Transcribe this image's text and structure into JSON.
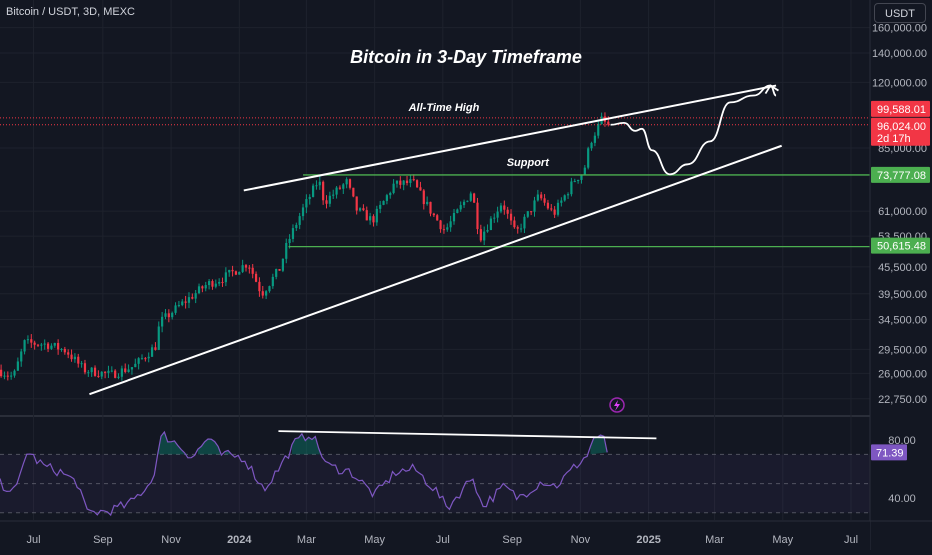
{
  "header": {
    "symbol": "Bitcoin / USDT, 3D, MEXC",
    "currency_button": "USDT"
  },
  "title": "Bitcoin in 3-Day Timeframe",
  "annotations": {
    "ath_label": "All-Time High",
    "support_label": "Support"
  },
  "price_badges": [
    {
      "id": "ath",
      "value": "99,588.01",
      "color": "#f23645"
    },
    {
      "id": "last",
      "value": "96,024.00",
      "sub": "2d 17h",
      "color": "#f23645"
    },
    {
      "id": "support",
      "value": "73,777.08",
      "color": "#4caf50"
    },
    {
      "id": "low",
      "value": "50,615.48",
      "color": "#4caf50"
    }
  ],
  "rsi_badge": {
    "value": "71.39",
    "color": "#7e57c2"
  },
  "colors": {
    "up": "#089981",
    "down": "#f23645",
    "rsi": "#7e57c2",
    "level": "#4caf50",
    "ath_line": "#f23645",
    "background": "#131722",
    "grid": "#1e222d"
  },
  "chart_data": [
    {
      "type": "candlestick",
      "title": "Bitcoin in 3-Day Timeframe",
      "y_scale": "log",
      "ylim": [
        21000,
        185000
      ],
      "y_ticks": [
        "160,000.00",
        "140,000.00",
        "120,000.00",
        "85,000.00",
        "61,000.00",
        "53,500.00",
        "45,500.00",
        "39,500.00",
        "34,500.00",
        "29,500.00",
        "26,000.00",
        "22,750.00"
      ],
      "x_ticks": [
        "Jul",
        "Sep",
        "Nov",
        "2024",
        "Mar",
        "May",
        "Jul",
        "Sep",
        "Nov",
        "2025",
        "Mar",
        "May",
        "Jul"
      ],
      "x_tick_dates": [
        "2023-07-01",
        "2023-09-01",
        "2023-11-01",
        "2024-01-01",
        "2024-03-01",
        "2024-05-01",
        "2024-07-01",
        "2024-09-01",
        "2024-11-01",
        "2025-01-01",
        "2025-03-01",
        "2025-05-01",
        "2025-07-01"
      ],
      "price_path": [
        [
          "2023-06-01",
          26500
        ],
        [
          "2023-06-15",
          25500
        ],
        [
          "2023-06-25",
          30500
        ],
        [
          "2023-07-15",
          30300
        ],
        [
          "2023-08-01",
          29300
        ],
        [
          "2023-08-17",
          26500
        ],
        [
          "2023-09-10",
          25800
        ],
        [
          "2023-10-01",
          27000
        ],
        [
          "2023-10-20",
          30000
        ],
        [
          "2023-10-24",
          34000
        ],
        [
          "2023-11-10",
          37000
        ],
        [
          "2023-12-05",
          41500
        ],
        [
          "2023-12-20",
          43000
        ],
        [
          "2024-01-11",
          46500
        ],
        [
          "2024-01-23",
          39500
        ],
        [
          "2024-02-08",
          45000
        ],
        [
          "2024-02-15",
          51500
        ],
        [
          "2024-02-28",
          61000
        ],
        [
          "2024-03-14",
          72000
        ],
        [
          "2024-03-19",
          64000
        ],
        [
          "2024-04-08",
          71000
        ],
        [
          "2024-04-17",
          61500
        ],
        [
          "2024-05-01",
          58000
        ],
        [
          "2024-05-20",
          70000
        ],
        [
          "2024-06-06",
          71000
        ],
        [
          "2024-06-24",
          60000
        ],
        [
          "2024-07-05",
          55000
        ],
        [
          "2024-07-29",
          68000
        ],
        [
          "2024-08-05",
          53000
        ],
        [
          "2024-08-25",
          64000
        ],
        [
          "2024-09-06",
          54000
        ],
        [
          "2024-09-27",
          66000
        ],
        [
          "2024-10-10",
          60000
        ],
        [
          "2024-10-29",
          72000
        ],
        [
          "2024-11-06",
          75000
        ],
        [
          "2024-11-12",
          88000
        ],
        [
          "2024-11-22",
          98500
        ],
        [
          "2024-11-27",
          96024
        ]
      ],
      "horizontal_levels": [
        {
          "name": "All-Time High",
          "value": 99588.01,
          "style": "dotted"
        },
        {
          "name": "Support",
          "value": 73777.08
        },
        {
          "value": 50615.48
        }
      ],
      "trendlines": [
        {
          "role": "upper",
          "from": [
            "2024-01-05",
            68000
          ],
          "to": [
            "2025-04-25",
            118000
          ]
        },
        {
          "role": "lower",
          "from": [
            "2023-08-20",
            23300
          ],
          "to": [
            "2025-04-30",
            86000
          ]
        }
      ],
      "projection_path": [
        [
          "2024-11-28",
          96024
        ],
        [
          "2024-12-10",
          97000
        ],
        [
          "2024-12-20",
          93000
        ],
        [
          "2024-12-26",
          94000
        ],
        [
          "2025-01-04",
          84000
        ],
        [
          "2025-01-20",
          74000
        ],
        [
          "2025-02-05",
          78000
        ],
        [
          "2025-02-25",
          88000
        ],
        [
          "2025-03-15",
          108000
        ],
        [
          "2025-04-05",
          112000
        ],
        [
          "2025-04-20",
          118000
        ],
        [
          "2025-04-25",
          112000
        ]
      ]
    },
    {
      "type": "line",
      "name": "RSI",
      "ylim": [
        25,
        95
      ],
      "y_ticks": [
        "80.00",
        "40.00"
      ],
      "bands": [
        70,
        50,
        30
      ],
      "last_value": 71.39,
      "series": [
        [
          "2023-06-01",
          50
        ],
        [
          "2023-06-15",
          44
        ],
        [
          "2023-06-25",
          72
        ],
        [
          "2023-07-10",
          62
        ],
        [
          "2023-07-25",
          58
        ],
        [
          "2023-08-10",
          50
        ],
        [
          "2023-08-17",
          30
        ],
        [
          "2023-09-05",
          31
        ],
        [
          "2023-09-25",
          36
        ],
        [
          "2023-10-15",
          52
        ],
        [
          "2023-10-24",
          84
        ],
        [
          "2023-11-05",
          78
        ],
        [
          "2023-11-20",
          68
        ],
        [
          "2023-12-05",
          82
        ],
        [
          "2023-12-15",
          70
        ],
        [
          "2024-01-05",
          68
        ],
        [
          "2024-01-23",
          46
        ],
        [
          "2024-02-05",
          60
        ],
        [
          "2024-02-20",
          78
        ],
        [
          "2024-03-05",
          85
        ],
        [
          "2024-03-20",
          62
        ],
        [
          "2024-04-10",
          58
        ],
        [
          "2024-05-01",
          42
        ],
        [
          "2024-05-20",
          58
        ],
        [
          "2024-06-06",
          60
        ],
        [
          "2024-06-25",
          45
        ],
        [
          "2024-07-05",
          33
        ],
        [
          "2024-07-28",
          55
        ],
        [
          "2024-08-05",
          34
        ],
        [
          "2024-08-25",
          48
        ],
        [
          "2024-09-06",
          40
        ],
        [
          "2024-09-28",
          52
        ],
        [
          "2024-10-10",
          48
        ],
        [
          "2024-10-29",
          63
        ],
        [
          "2024-11-08",
          70
        ],
        [
          "2024-11-13",
          82
        ],
        [
          "2024-11-22",
          80
        ],
        [
          "2024-11-27",
          71.39
        ]
      ],
      "trendlines": [
        {
          "from": [
            "2024-02-05",
            86
          ],
          "to": [
            "2025-01-08",
            81
          ]
        }
      ]
    }
  ]
}
